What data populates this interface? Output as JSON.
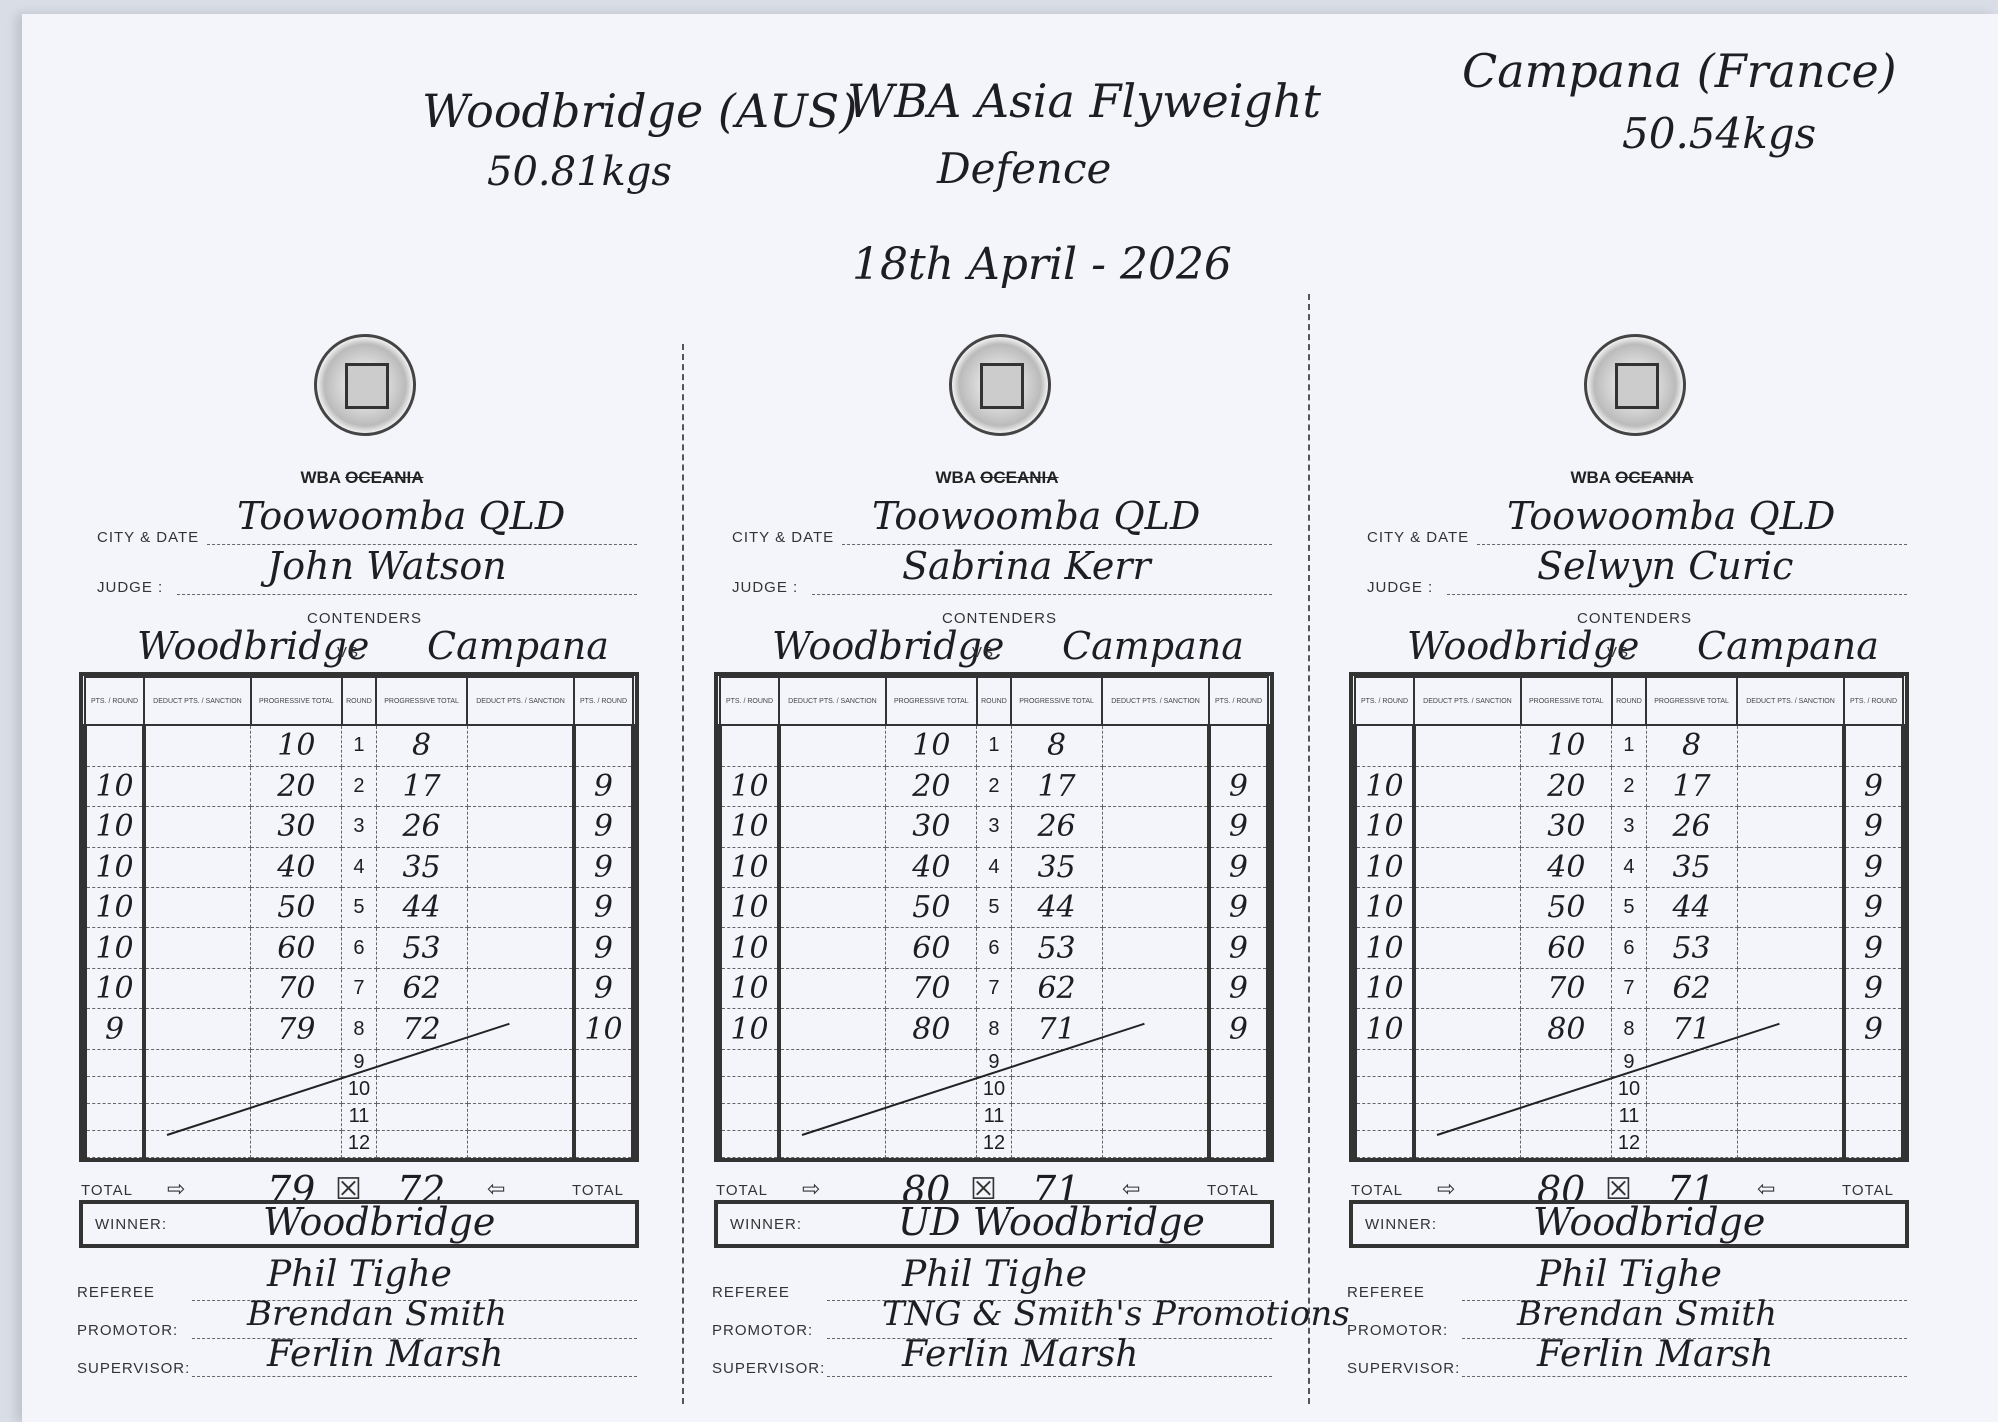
{
  "header": {
    "fighter_left": "Woodbridge (AUS)",
    "weight_left": "50.81kgs",
    "title": "WBA Asia Flyweight",
    "subtitle": "Defence",
    "date": "18th April - 2026",
    "fighter_right": "Campana (France)",
    "weight_right": "50.54kgs"
  },
  "form_labels": {
    "org_prefix": "WBA",
    "org_struck": "OCEANIA",
    "city_date": "CITY & DATE",
    "judge": "JUDGE :",
    "contenders": "CONTENDERS",
    "vs": "VS",
    "total": "TOTAL",
    "winner": "WINNER:",
    "referee": "REFEREE",
    "promotor": "PROMOTOR:",
    "supervisor": "SUPERVISOR:",
    "columns": [
      "PTS. / ROUND",
      "DEDUCT PTS. / SANCTION",
      "PROGRESSIVE TOTAL",
      "ROUND",
      "PROGRESSIVE TOTAL",
      "DEDUCT PTS. / SANCTION",
      "PTS. / ROUND"
    ],
    "rounds": [
      "1",
      "2",
      "3",
      "4",
      "5",
      "6",
      "7",
      "8",
      "9",
      "10",
      "11",
      "12"
    ]
  },
  "cards": [
    {
      "city": "Toowoomba QLD",
      "judge": "John Watson",
      "red": "Woodbridge",
      "blue": "Campana",
      "red_points": [
        "",
        "10",
        "10",
        "10",
        "10",
        "10",
        "10",
        "9"
      ],
      "red_progressive": [
        "10",
        "20",
        "30",
        "40",
        "50",
        "60",
        "70",
        "79"
      ],
      "blue_progressive": [
        "8",
        "17",
        "26",
        "35",
        "44",
        "53",
        "62",
        "72"
      ],
      "blue_points": [
        "",
        "9",
        "9",
        "9",
        "9",
        "9",
        "9",
        "10"
      ],
      "red_total": "79",
      "blue_total": "72",
      "winner": "Woodbridge",
      "referee": "Phil Tighe",
      "promotor": "Brendan Smith",
      "supervisor": "Ferlin Marsh"
    },
    {
      "city": "Toowoomba QLD",
      "judge": "Sabrina Kerr",
      "red": "Woodbridge",
      "blue": "Campana",
      "red_points": [
        "",
        "10",
        "10",
        "10",
        "10",
        "10",
        "10",
        "10"
      ],
      "red_progressive": [
        "10",
        "20",
        "30",
        "40",
        "50",
        "60",
        "70",
        "80"
      ],
      "blue_progressive": [
        "8",
        "17",
        "26",
        "35",
        "44",
        "53",
        "62",
        "71"
      ],
      "blue_points": [
        "",
        "9",
        "9",
        "9",
        "9",
        "9",
        "9",
        "9"
      ],
      "red_total": "80",
      "blue_total": "71",
      "winner": "UD Woodbridge",
      "referee": "Phil Tighe",
      "promotor": "TNG & Smith's Promotions",
      "supervisor": "Ferlin Marsh"
    },
    {
      "city": "Toowoomba QLD",
      "judge": "Selwyn Curic",
      "red": "Woodbridge",
      "blue": "Campana",
      "red_points": [
        "",
        "10",
        "10",
        "10",
        "10",
        "10",
        "10",
        "10"
      ],
      "red_progressive": [
        "10",
        "20",
        "30",
        "40",
        "50",
        "60",
        "70",
        "80"
      ],
      "blue_progressive": [
        "8",
        "17",
        "26",
        "35",
        "44",
        "53",
        "62",
        "71"
      ],
      "blue_points": [
        "",
        "9",
        "9",
        "9",
        "9",
        "9",
        "9",
        "9"
      ],
      "red_total": "80",
      "blue_total": "71",
      "winner": "Woodbridge",
      "referee": "Phil Tighe",
      "promotor": "Brendan Smith",
      "supervisor": "Ferlin Marsh"
    }
  ]
}
